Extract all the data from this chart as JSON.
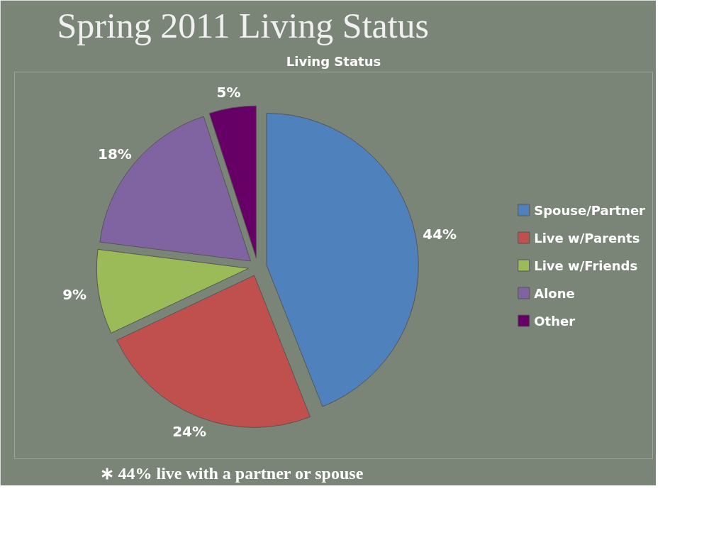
{
  "chart_data": {
    "type": "pie",
    "title": "Spring 2011 Living Status",
    "subtitle": "Living Status",
    "categories": [
      "Spouse/Partner",
      "Live w/Parents",
      "Live w/Friends",
      "Alone",
      "Other"
    ],
    "values": [
      44,
      24,
      9,
      18,
      5
    ],
    "colors": [
      "#4f81bd",
      "#c0504d",
      "#9bbb59",
      "#8064a2",
      "#660066"
    ],
    "value_labels": [
      "44%",
      "24%",
      "9%",
      "18%",
      "5%"
    ],
    "legend": "right",
    "annotations": [
      "∗ 44% live with a partner or spouse"
    ]
  }
}
